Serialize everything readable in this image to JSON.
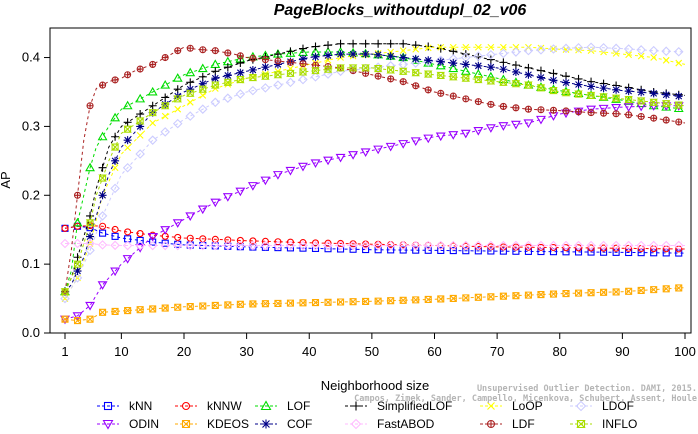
{
  "chart_data": {
    "type": "line",
    "title": "PageBlocks_withoutdupl_02_v06",
    "xlabel": "Neighborhood size",
    "ylabel": "AP",
    "xlim": [
      1,
      100
    ],
    "ylim": [
      0,
      0.44
    ],
    "x_ticks": [
      1,
      10,
      20,
      30,
      40,
      50,
      60,
      70,
      80,
      90,
      100
    ],
    "x_tick_labels": [
      "1",
      "10",
      "20",
      "30",
      "40",
      "50",
      "60",
      "70",
      "80",
      "90",
      "100"
    ],
    "y_ticks": [
      0.0,
      0.1,
      0.2,
      0.3,
      0.4
    ],
    "y_tick_labels": [
      "0.0",
      "0.1",
      "0.2",
      "0.3",
      "0.4"
    ],
    "legend_position": "bottom",
    "series": [
      {
        "name": "kNN",
        "color": "#0000ff",
        "marker": "square",
        "points": [
          [
            1,
            0.152
          ],
          [
            3,
            0.155
          ],
          [
            5,
            0.153
          ],
          [
            7,
            0.145
          ],
          [
            10,
            0.138
          ],
          [
            15,
            0.132
          ],
          [
            20,
            0.128
          ],
          [
            30,
            0.125
          ],
          [
            40,
            0.123
          ],
          [
            50,
            0.121
          ],
          [
            60,
            0.12
          ],
          [
            70,
            0.119
          ],
          [
            80,
            0.118
          ],
          [
            90,
            0.117
          ],
          [
            100,
            0.116
          ]
        ]
      },
      {
        "name": "kNNW",
        "color": "#ff0000",
        "marker": "circle",
        "points": [
          [
            1,
            0.152
          ],
          [
            3,
            0.155
          ],
          [
            5,
            0.156
          ],
          [
            7,
            0.155
          ],
          [
            10,
            0.148
          ],
          [
            15,
            0.142
          ],
          [
            20,
            0.138
          ],
          [
            30,
            0.134
          ],
          [
            40,
            0.131
          ],
          [
            50,
            0.129
          ],
          [
            60,
            0.127
          ],
          [
            70,
            0.125
          ],
          [
            80,
            0.124
          ],
          [
            90,
            0.123
          ],
          [
            100,
            0.122
          ]
        ]
      },
      {
        "name": "LOF",
        "color": "#00dd00",
        "marker": "triangle",
        "points": [
          [
            1,
            0.06
          ],
          [
            2,
            0.09
          ],
          [
            3,
            0.16
          ],
          [
            4,
            0.2
          ],
          [
            5,
            0.24
          ],
          [
            6,
            0.27
          ],
          [
            8,
            0.3
          ],
          [
            10,
            0.325
          ],
          [
            15,
            0.35
          ],
          [
            20,
            0.375
          ],
          [
            25,
            0.39
          ],
          [
            30,
            0.4
          ],
          [
            35,
            0.405
          ],
          [
            40,
            0.408
          ],
          [
            45,
            0.408
          ],
          [
            50,
            0.405
          ],
          [
            55,
            0.4
          ],
          [
            60,
            0.39
          ],
          [
            65,
            0.38
          ],
          [
            70,
            0.37
          ],
          [
            75,
            0.36
          ],
          [
            80,
            0.352
          ],
          [
            85,
            0.345
          ],
          [
            90,
            0.338
          ],
          [
            95,
            0.33
          ],
          [
            100,
            0.325
          ]
        ]
      },
      {
        "name": "SimplifiedLOF",
        "color": "#000000",
        "marker": "plus",
        "points": [
          [
            1,
            0.06
          ],
          [
            2,
            0.08
          ],
          [
            3,
            0.11
          ],
          [
            4,
            0.14
          ],
          [
            5,
            0.17
          ],
          [
            6,
            0.21
          ],
          [
            8,
            0.27
          ],
          [
            10,
            0.3
          ],
          [
            15,
            0.33
          ],
          [
            20,
            0.36
          ],
          [
            25,
            0.38
          ],
          [
            30,
            0.395
          ],
          [
            35,
            0.405
          ],
          [
            40,
            0.415
          ],
          [
            45,
            0.42
          ],
          [
            50,
            0.42
          ],
          [
            55,
            0.42
          ],
          [
            60,
            0.415
          ],
          [
            65,
            0.405
          ],
          [
            70,
            0.395
          ],
          [
            75,
            0.385
          ],
          [
            80,
            0.375
          ],
          [
            85,
            0.365
          ],
          [
            90,
            0.358
          ],
          [
            95,
            0.35
          ],
          [
            100,
            0.345
          ]
        ]
      },
      {
        "name": "LoOP",
        "color": "#ffff00",
        "marker": "cross",
        "points": [
          [
            1,
            0.05
          ],
          [
            3,
            0.08
          ],
          [
            5,
            0.13
          ],
          [
            7,
            0.2
          ],
          [
            10,
            0.26
          ],
          [
            15,
            0.305
          ],
          [
            20,
            0.33
          ],
          [
            25,
            0.355
          ],
          [
            30,
            0.37
          ],
          [
            35,
            0.38
          ],
          [
            40,
            0.39
          ],
          [
            45,
            0.4
          ],
          [
            50,
            0.405
          ],
          [
            55,
            0.41
          ],
          [
            60,
            0.415
          ],
          [
            65,
            0.415
          ],
          [
            70,
            0.415
          ],
          [
            75,
            0.415
          ],
          [
            80,
            0.412
          ],
          [
            85,
            0.41
          ],
          [
            90,
            0.405
          ],
          [
            95,
            0.4
          ],
          [
            100,
            0.39
          ]
        ]
      },
      {
        "name": "LDOF",
        "color": "#ccccff",
        "marker": "diamond",
        "points": [
          [
            1,
            0.05
          ],
          [
            3,
            0.08
          ],
          [
            5,
            0.12
          ],
          [
            7,
            0.17
          ],
          [
            10,
            0.23
          ],
          [
            15,
            0.28
          ],
          [
            20,
            0.31
          ],
          [
            25,
            0.335
          ],
          [
            30,
            0.35
          ],
          [
            35,
            0.36
          ],
          [
            40,
            0.37
          ],
          [
            45,
            0.38
          ],
          [
            50,
            0.385
          ],
          [
            55,
            0.39
          ],
          [
            60,
            0.395
          ],
          [
            65,
            0.4
          ],
          [
            70,
            0.405
          ],
          [
            75,
            0.41
          ],
          [
            80,
            0.413
          ],
          [
            85,
            0.415
          ],
          [
            90,
            0.413
          ],
          [
            95,
            0.41
          ],
          [
            100,
            0.408
          ]
        ]
      },
      {
        "name": "ODIN",
        "color": "#9900ff",
        "marker": "triangle-down",
        "points": [
          [
            1,
            0.02
          ],
          [
            3,
            0.025
          ],
          [
            5,
            0.04
          ],
          [
            7,
            0.07
          ],
          [
            10,
            0.1
          ],
          [
            15,
            0.14
          ],
          [
            20,
            0.165
          ],
          [
            25,
            0.19
          ],
          [
            30,
            0.21
          ],
          [
            35,
            0.23
          ],
          [
            40,
            0.245
          ],
          [
            45,
            0.255
          ],
          [
            50,
            0.265
          ],
          [
            55,
            0.275
          ],
          [
            60,
            0.285
          ],
          [
            65,
            0.29
          ],
          [
            70,
            0.3
          ],
          [
            75,
            0.305
          ],
          [
            80,
            0.318
          ],
          [
            85,
            0.325
          ],
          [
            90,
            0.328
          ],
          [
            95,
            0.33
          ],
          [
            100,
            0.33
          ]
        ]
      },
      {
        "name": "KDEOS",
        "color": "#ffaa00",
        "marker": "square-x",
        "points": [
          [
            1,
            0.02
          ],
          [
            3,
            0.018
          ],
          [
            5,
            0.02
          ],
          [
            7,
            0.03
          ],
          [
            10,
            0.032
          ],
          [
            15,
            0.035
          ],
          [
            20,
            0.038
          ],
          [
            30,
            0.042
          ],
          [
            40,
            0.044
          ],
          [
            50,
            0.046
          ],
          [
            60,
            0.049
          ],
          [
            70,
            0.053
          ],
          [
            80,
            0.057
          ],
          [
            90,
            0.06
          ],
          [
            100,
            0.066
          ]
        ]
      },
      {
        "name": "COF",
        "color": "#000088",
        "marker": "asterisk",
        "points": [
          [
            1,
            0.06
          ],
          [
            2,
            0.07
          ],
          [
            3,
            0.09
          ],
          [
            4,
            0.11
          ],
          [
            5,
            0.14
          ],
          [
            6,
            0.17
          ],
          [
            8,
            0.23
          ],
          [
            10,
            0.27
          ],
          [
            15,
            0.32
          ],
          [
            20,
            0.35
          ],
          [
            25,
            0.37
          ],
          [
            30,
            0.38
          ],
          [
            35,
            0.39
          ],
          [
            40,
            0.4
          ],
          [
            45,
            0.405
          ],
          [
            50,
            0.405
          ],
          [
            55,
            0.4
          ],
          [
            60,
            0.395
          ],
          [
            65,
            0.39
          ],
          [
            70,
            0.385
          ],
          [
            75,
            0.375
          ],
          [
            80,
            0.365
          ],
          [
            85,
            0.358
          ],
          [
            90,
            0.352
          ],
          [
            95,
            0.348
          ],
          [
            100,
            0.343
          ]
        ]
      },
      {
        "name": "FastABOD",
        "color": "#ffbbff",
        "marker": "diamond",
        "points": [
          [
            1,
            0.13
          ],
          [
            3,
            0.13
          ],
          [
            5,
            0.13
          ],
          [
            7,
            0.128
          ],
          [
            10,
            0.127
          ],
          [
            15,
            0.127
          ],
          [
            20,
            0.127
          ],
          [
            30,
            0.127
          ],
          [
            40,
            0.127
          ],
          [
            50,
            0.127
          ],
          [
            60,
            0.127
          ],
          [
            70,
            0.127
          ],
          [
            80,
            0.127
          ],
          [
            90,
            0.127
          ],
          [
            100,
            0.127
          ]
        ]
      },
      {
        "name": "LDF",
        "color": "#aa2222",
        "marker": "circle-plus",
        "points": [
          [
            1,
            0.06
          ],
          [
            2,
            0.12
          ],
          [
            3,
            0.2
          ],
          [
            4,
            0.28
          ],
          [
            5,
            0.33
          ],
          [
            6,
            0.355
          ],
          [
            8,
            0.365
          ],
          [
            10,
            0.37
          ],
          [
            12,
            0.38
          ],
          [
            15,
            0.39
          ],
          [
            18,
            0.405
          ],
          [
            20,
            0.415
          ],
          [
            22,
            0.412
          ],
          [
            25,
            0.41
          ],
          [
            28,
            0.405
          ],
          [
            30,
            0.4
          ],
          [
            35,
            0.395
          ],
          [
            40,
            0.39
          ],
          [
            45,
            0.385
          ],
          [
            50,
            0.375
          ],
          [
            55,
            0.365
          ],
          [
            60,
            0.35
          ],
          [
            65,
            0.34
          ],
          [
            70,
            0.33
          ],
          [
            75,
            0.325
          ],
          [
            80,
            0.323
          ],
          [
            85,
            0.32
          ],
          [
            90,
            0.318
          ],
          [
            95,
            0.312
          ],
          [
            100,
            0.305
          ]
        ]
      },
      {
        "name": "INFLO",
        "color": "#aadd00",
        "marker": "hourglass",
        "points": [
          [
            1,
            0.06
          ],
          [
            2,
            0.08
          ],
          [
            3,
            0.1
          ],
          [
            4,
            0.13
          ],
          [
            5,
            0.16
          ],
          [
            6,
            0.2
          ],
          [
            8,
            0.25
          ],
          [
            10,
            0.29
          ],
          [
            15,
            0.32
          ],
          [
            20,
            0.345
          ],
          [
            25,
            0.36
          ],
          [
            30,
            0.37
          ],
          [
            35,
            0.375
          ],
          [
            40,
            0.38
          ],
          [
            45,
            0.385
          ],
          [
            50,
            0.385
          ],
          [
            55,
            0.38
          ],
          [
            60,
            0.375
          ],
          [
            65,
            0.37
          ],
          [
            70,
            0.365
          ],
          [
            75,
            0.36
          ],
          [
            80,
            0.35
          ],
          [
            85,
            0.345
          ],
          [
            90,
            0.34
          ],
          [
            95,
            0.335
          ],
          [
            100,
            0.33
          ]
        ]
      }
    ],
    "legend": [
      [
        "kNN",
        "kNNW",
        "LOF",
        "SimplifiedLOF",
        "LoOP",
        "LDOF"
      ],
      [
        "ODIN",
        "KDEOS",
        "COF",
        "FastABOD",
        "LDF",
        "INFLO"
      ]
    ]
  },
  "watermark": {
    "line1": "Unsupervised Outlier Detection. DAMI, 2015.",
    "line2": "Campos, Zimek, Sander, Campello, Micenkova, Schubert, Assent, Houle"
  }
}
